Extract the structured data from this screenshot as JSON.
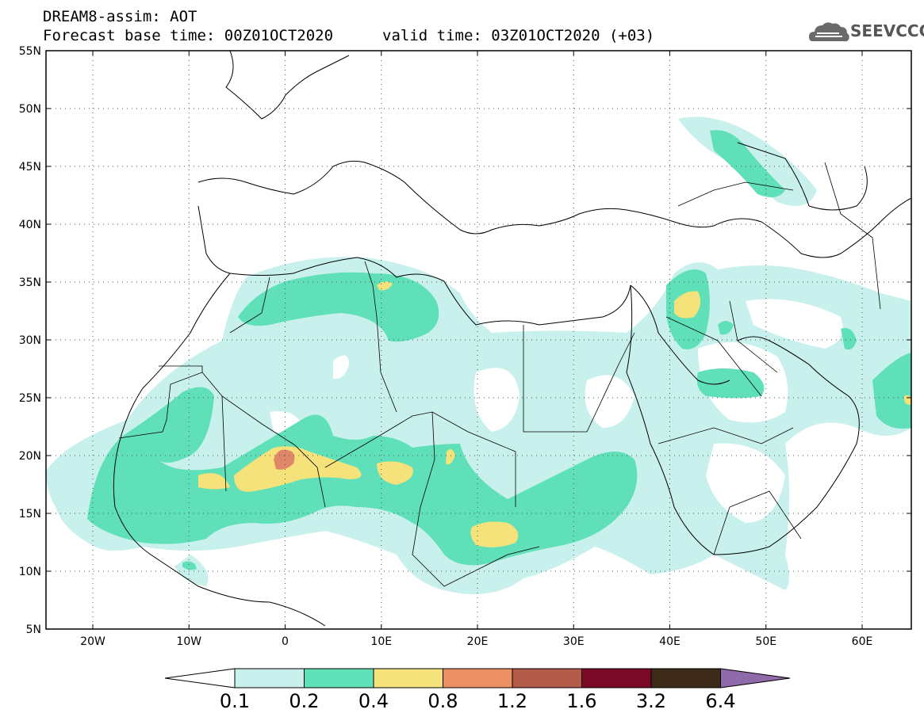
{
  "header": {
    "line1": "DREAM8-assim: AOT",
    "line2": "Forecast base time: 00Z01OCT2020",
    "line2_valid": "valid time: 03Z01OCT2020 (+03)",
    "logo_text": "SEEVCCC",
    "logo_icon": "cloud-icon"
  },
  "axes": {
    "lat_labels": [
      "55N",
      "50N",
      "45N",
      "40N",
      "35N",
      "30N",
      "25N",
      "20N",
      "15N",
      "10N",
      "5N"
    ],
    "lon_labels": [
      "20W",
      "10W",
      "0",
      "10E",
      "20E",
      "30E",
      "40E",
      "50E",
      "60E"
    ]
  },
  "colorbar": {
    "ticks": [
      "0.1",
      "0.2",
      "0.4",
      "0.8",
      "1.2",
      "1.6",
      "3.2",
      "6.4"
    ],
    "colors": [
      "#c8f0ec",
      "#5fe0b8",
      "#f5e27a",
      "#eb9165",
      "#b35a48",
      "#7a0a28",
      "#3d2a18",
      "#8f6aa8"
    ]
  },
  "map_colors": {
    "level1": "#c8f0ec",
    "level2": "#5fe0b8",
    "level3": "#f5e27a",
    "level4": "#e0876a"
  }
}
